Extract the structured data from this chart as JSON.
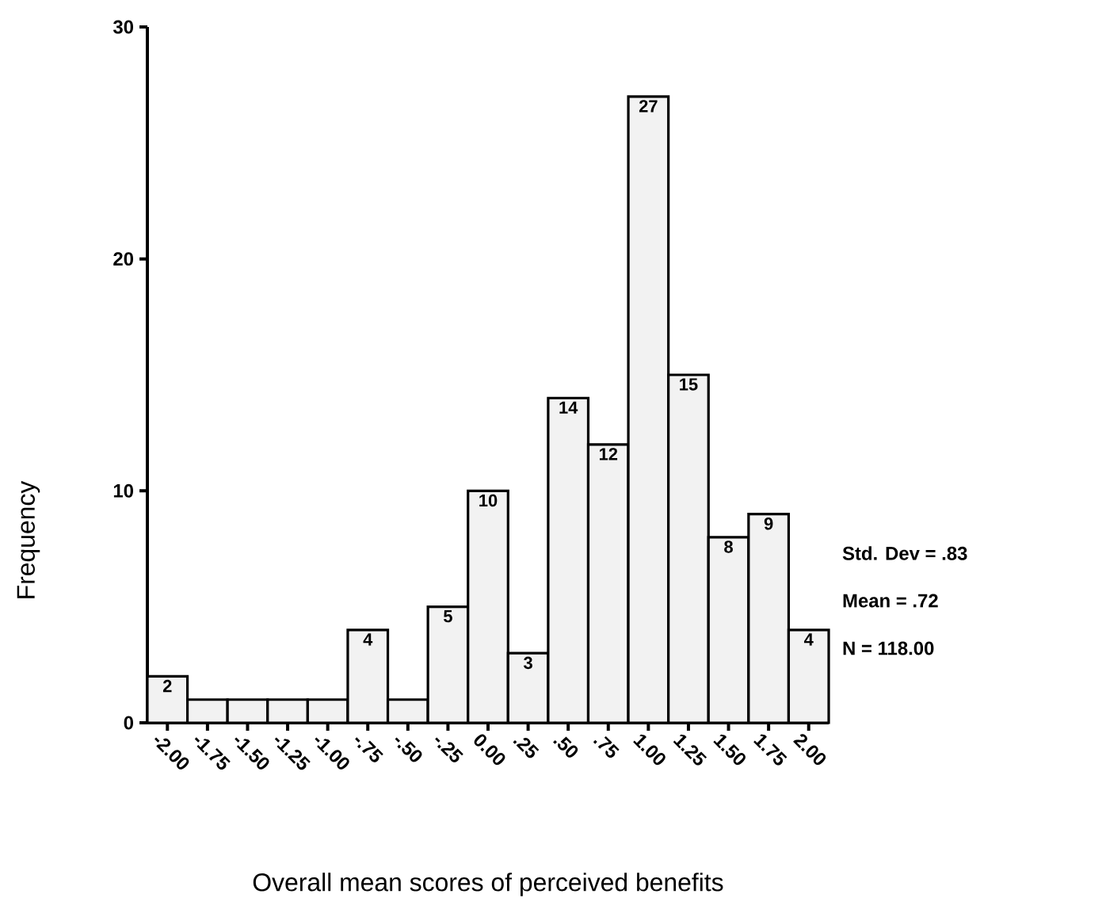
{
  "chart_data": {
    "type": "histogram",
    "xlabel": "Overall mean scores of perceived benefits",
    "ylabel": "Frequency",
    "bins": [
      -2.125,
      -1.875,
      -1.625,
      -1.375,
      -1.125,
      -0.875,
      -0.625,
      -0.375,
      -0.125,
      0.125,
      0.375,
      0.625,
      0.875,
      1.125,
      1.375,
      1.625,
      1.875,
      2.125
    ],
    "values": [
      2,
      1,
      1,
      1,
      1,
      4,
      1,
      5,
      10,
      3,
      14,
      12,
      27,
      15,
      8,
      9,
      4
    ],
    "value_labels": [
      "2",
      null,
      null,
      null,
      null,
      "4",
      null,
      "5",
      "10",
      "3",
      "14",
      "12",
      "27",
      "15",
      "8",
      "9",
      "4"
    ],
    "color": "#f2f2f2",
    "xlim": [
      -2.125,
      2.125
    ],
    "xticks": [
      {
        "value": -2,
        "label": "-2.00"
      },
      {
        "value": -1.75,
        "label": "-1.75"
      },
      {
        "value": -1.5,
        "label": "-1.50"
      },
      {
        "value": -1.25,
        "label": "-1.25"
      },
      {
        "value": -1,
        "label": "-1.00"
      },
      {
        "value": -0.75,
        "label": "-.75"
      },
      {
        "value": -0.5,
        "label": "-.50"
      },
      {
        "value": -0.25,
        "label": "-.25"
      },
      {
        "value": 0,
        "label": "0.00"
      },
      {
        "value": 0.25,
        "label": ".25"
      },
      {
        "value": 0.5,
        "label": ".50"
      },
      {
        "value": 0.75,
        "label": ".75"
      },
      {
        "value": 1,
        "label": "1.00"
      },
      {
        "value": 1.25,
        "label": "1.25"
      },
      {
        "value": 1.5,
        "label": "1.50"
      },
      {
        "value": 1.75,
        "label": "1.75"
      },
      {
        "value": 2,
        "label": "2.00"
      }
    ],
    "ylim": [
      0,
      30
    ],
    "yticks": [
      0,
      10,
      20,
      30
    ],
    "annotations": [
      "Std. Dev = .83",
      "Mean = .72",
      "N = 118.00"
    ]
  }
}
